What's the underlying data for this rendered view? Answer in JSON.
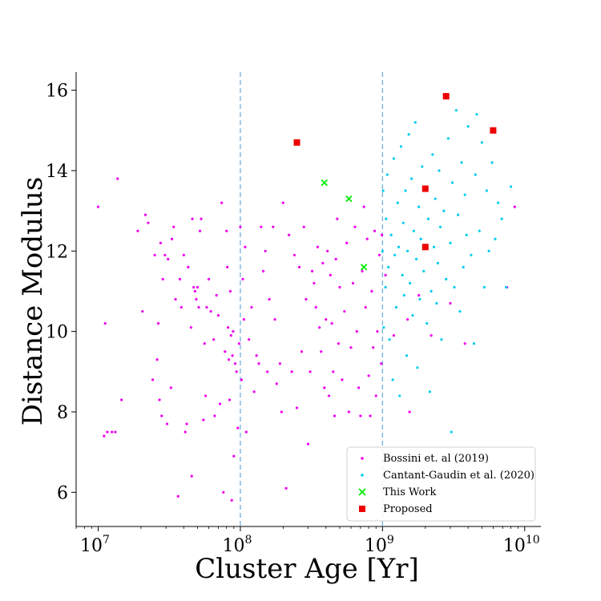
{
  "chart_data": {
    "type": "scatter",
    "xscale": "log",
    "xlim": [
      7000000,
      13000000000
    ],
    "ylim": [
      5.15,
      16.45
    ],
    "xlabel": "Cluster Age [Yr]",
    "ylabel": "Distance Modulus",
    "x_ticks": [
      {
        "value": 10000000,
        "base": "10",
        "exp": "7"
      },
      {
        "value": 100000000,
        "base": "10",
        "exp": "8"
      },
      {
        "value": 1000000000,
        "base": "10",
        "exp": "9"
      },
      {
        "value": 10000000000,
        "base": "10",
        "exp": "10"
      }
    ],
    "y_ticks": [
      6,
      8,
      10,
      12,
      14,
      16
    ],
    "vlines": [
      100000000,
      1000000000
    ],
    "grid": false,
    "legend_position": "lower-right",
    "colors": {
      "bossini": "#ee00ee",
      "cantat": "#00ccee",
      "this_work": "#00ee00",
      "proposed": "#ee0000",
      "vline": "#7fb5df"
    },
    "series": [
      {
        "name": "Bossini et. al (2019)",
        "marker": "dot",
        "points": [
          [
            10000000,
            13.1
          ],
          [
            11000000,
            7.4
          ],
          [
            11200000,
            10.2
          ],
          [
            11600000,
            7.5
          ],
          [
            12500000,
            7.5
          ],
          [
            13200000,
            7.5
          ],
          [
            13700000,
            13.8
          ],
          [
            14600000,
            8.3
          ],
          [
            19000000,
            12.5
          ],
          [
            20500000,
            10.5
          ],
          [
            21500000,
            12.9
          ],
          [
            22500000,
            12.7
          ],
          [
            24200000,
            8.8
          ],
          [
            25000000,
            11.9
          ],
          [
            26000000,
            9.3
          ],
          [
            26500000,
            10.2
          ],
          [
            27000000,
            8.3
          ],
          [
            27500000,
            12.2
          ],
          [
            28000000,
            7.9
          ],
          [
            28500000,
            11.3
          ],
          [
            29500000,
            11.9
          ],
          [
            30500000,
            7.7
          ],
          [
            31000000,
            11.8
          ],
          [
            32500000,
            8.6
          ],
          [
            33000000,
            12.3
          ],
          [
            34000000,
            12.6
          ],
          [
            35000000,
            10.8
          ],
          [
            36500000,
            5.9
          ],
          [
            37500000,
            11.3
          ],
          [
            38500000,
            10.6
          ],
          [
            40000000,
            11.9
          ],
          [
            41000000,
            7.5
          ],
          [
            42000000,
            7.7
          ],
          [
            43000000,
            11.6
          ],
          [
            45000000,
            10.1
          ],
          [
            45500000,
            6.4
          ],
          [
            46000000,
            12.8
          ],
          [
            47000000,
            11.1
          ],
          [
            48000000,
            11.0
          ],
          [
            49000000,
            10.8
          ],
          [
            50000000,
            11.1
          ],
          [
            51000000,
            10.6
          ],
          [
            52000000,
            12.5
          ],
          [
            53000000,
            12.8
          ],
          [
            55000000,
            7.8
          ],
          [
            56000000,
            9.7
          ],
          [
            57000000,
            8.4
          ],
          [
            58000000,
            10.6
          ],
          [
            60000000,
            11.3
          ],
          [
            62000000,
            10.5
          ],
          [
            65000000,
            9.8
          ],
          [
            66000000,
            7.9
          ],
          [
            68000000,
            10.9
          ],
          [
            70000000,
            10.4
          ],
          [
            72000000,
            8.2
          ],
          [
            74000000,
            13.2
          ],
          [
            76000000,
            6.0
          ],
          [
            78000000,
            9.5
          ],
          [
            80000000,
            12.5
          ],
          [
            81000000,
            11.6
          ],
          [
            82000000,
            10.1
          ],
          [
            83000000,
            9.3
          ],
          [
            84000000,
            8.3
          ],
          [
            85000000,
            11.0
          ],
          [
            86000000,
            9.9
          ],
          [
            87000000,
            5.8
          ],
          [
            88000000,
            9.4
          ],
          [
            89000000,
            10.0
          ],
          [
            90000000,
            6.9
          ],
          [
            92000000,
            9.2
          ],
          [
            94000000,
            9.0
          ],
          [
            96000000,
            7.6
          ],
          [
            98000000,
            9.7
          ],
          [
            100000000,
            12.6
          ],
          [
            102000000,
            8.8
          ],
          [
            104000000,
            11.3
          ],
          [
            106000000,
            10.3
          ],
          [
            108000000,
            12.1
          ],
          [
            110000000,
            7.5
          ],
          [
            115000000,
            9.8
          ],
          [
            120000000,
            10.6
          ],
          [
            125000000,
            8.5
          ],
          [
            130000000,
            9.4
          ],
          [
            135000000,
            9.2
          ],
          [
            140000000,
            12.6
          ],
          [
            145000000,
            11.5
          ],
          [
            150000000,
            12.0
          ],
          [
            155000000,
            9.0
          ],
          [
            160000000,
            10.8
          ],
          [
            170000000,
            12.6
          ],
          [
            175000000,
            10.3
          ],
          [
            180000000,
            8.7
          ],
          [
            190000000,
            9.2
          ],
          [
            195000000,
            8.0
          ],
          [
            200000000,
            13.2
          ],
          [
            210000000,
            6.1
          ],
          [
            220000000,
            12.4
          ],
          [
            230000000,
            9.0
          ],
          [
            240000000,
            11.9
          ],
          [
            250000000,
            8.1
          ],
          [
            260000000,
            11.6
          ],
          [
            270000000,
            9.5
          ],
          [
            280000000,
            12.6
          ],
          [
            290000000,
            10.8
          ],
          [
            300000000,
            7.2
          ],
          [
            310000000,
            9.0
          ],
          [
            320000000,
            11.5
          ],
          [
            330000000,
            11.2
          ],
          [
            340000000,
            10.6
          ],
          [
            350000000,
            12.1
          ],
          [
            360000000,
            10.1
          ],
          [
            370000000,
            9.5
          ],
          [
            380000000,
            11.7
          ],
          [
            390000000,
            8.6
          ],
          [
            400000000,
            10.3
          ],
          [
            410000000,
            12.0
          ],
          [
            420000000,
            8.4
          ],
          [
            430000000,
            11.4
          ],
          [
            440000000,
            10.2
          ],
          [
            450000000,
            9.0
          ],
          [
            460000000,
            7.9
          ],
          [
            470000000,
            11.8
          ],
          [
            480000000,
            12.8
          ],
          [
            490000000,
            9.7
          ],
          [
            500000000,
            11.1
          ],
          [
            520000000,
            8.8
          ],
          [
            540000000,
            10.5
          ],
          [
            560000000,
            12.2
          ],
          [
            580000000,
            8.0
          ],
          [
            600000000,
            9.6
          ],
          [
            620000000,
            11.2
          ],
          [
            640000000,
            12.6
          ],
          [
            660000000,
            10.0
          ],
          [
            680000000,
            8.6
          ],
          [
            700000000,
            7.9
          ],
          [
            720000000,
            11.5
          ],
          [
            740000000,
            13.1
          ],
          [
            760000000,
            10.6
          ],
          [
            780000000,
            12.3
          ],
          [
            800000000,
            8.9
          ],
          [
            820000000,
            7.9
          ],
          [
            840000000,
            11.0
          ],
          [
            860000000,
            9.6
          ],
          [
            880000000,
            12.5
          ],
          [
            900000000,
            8.4
          ],
          [
            920000000,
            10.0
          ],
          [
            950000000,
            11.9
          ],
          [
            980000000,
            9.2
          ],
          [
            990000000,
            12.4
          ],
          [
            1050000000,
            11.4
          ],
          [
            1200000000,
            9.9
          ],
          [
            1500000000,
            10.3
          ],
          [
            1550000000,
            8.0
          ],
          [
            1800000000,
            10.9
          ],
          [
            2200000000,
            9.9
          ],
          [
            3000000000,
            10.7
          ],
          [
            3800000000,
            9.7
          ],
          [
            7500000000,
            11.1
          ],
          [
            8500000000,
            13.1
          ]
        ]
      },
      {
        "name": "Cantant-Gaudin et al. (2020)",
        "marker": "dot",
        "points": [
          [
            1000000000,
            12.0
          ],
          [
            1010000000,
            13.5
          ],
          [
            1020000000,
            10.1
          ],
          [
            1050000000,
            11.1
          ],
          [
            1060000000,
            12.8
          ],
          [
            1080000000,
            13.9
          ],
          [
            1100000000,
            11.6
          ],
          [
            1120000000,
            9.8
          ],
          [
            1150000000,
            12.4
          ],
          [
            1180000000,
            8.8
          ],
          [
            1200000000,
            14.3
          ],
          [
            1220000000,
            11.9
          ],
          [
            1250000000,
            10.6
          ],
          [
            1280000000,
            13.2
          ],
          [
            1300000000,
            12.1
          ],
          [
            1320000000,
            8.4
          ],
          [
            1350000000,
            14.6
          ],
          [
            1380000000,
            11.4
          ],
          [
            1400000000,
            12.7
          ],
          [
            1420000000,
            10.9
          ],
          [
            1450000000,
            13.5
          ],
          [
            1480000000,
            9.4
          ],
          [
            1500000000,
            12.0
          ],
          [
            1530000000,
            14.9
          ],
          [
            1560000000,
            11.2
          ],
          [
            1600000000,
            13.8
          ],
          [
            1630000000,
            10.4
          ],
          [
            1660000000,
            12.5
          ],
          [
            1700000000,
            15.2
          ],
          [
            1730000000,
            11.8
          ],
          [
            1760000000,
            9.1
          ],
          [
            1800000000,
            13.1
          ],
          [
            1830000000,
            10.8
          ],
          [
            1860000000,
            12.3
          ],
          [
            1900000000,
            14.1
          ],
          [
            1950000000,
            11.5
          ],
          [
            2000000000,
            13.6
          ],
          [
            2050000000,
            10.2
          ],
          [
            2100000000,
            12.8
          ],
          [
            2150000000,
            8.5
          ],
          [
            2200000000,
            11.0
          ],
          [
            2250000000,
            14.4
          ],
          [
            2300000000,
            12.1
          ],
          [
            2350000000,
            13.3
          ],
          [
            2400000000,
            10.7
          ],
          [
            2450000000,
            11.7
          ],
          [
            2500000000,
            14.0
          ],
          [
            2550000000,
            12.6
          ],
          [
            2600000000,
            9.8
          ],
          [
            2700000000,
            13.0
          ],
          [
            2800000000,
            11.3
          ],
          [
            2900000000,
            14.8
          ],
          [
            3000000000,
            12.2
          ],
          [
            3050000000,
            7.5
          ],
          [
            3100000000,
            13.7
          ],
          [
            3200000000,
            11.1
          ],
          [
            3300000000,
            15.5
          ],
          [
            3400000000,
            12.9
          ],
          [
            3500000000,
            10.5
          ],
          [
            3600000000,
            14.2
          ],
          [
            3700000000,
            11.6
          ],
          [
            3800000000,
            13.4
          ],
          [
            3900000000,
            12.4
          ],
          [
            4000000000,
            15.1
          ],
          [
            4200000000,
            11.9
          ],
          [
            4400000000,
            9.7
          ],
          [
            4500000000,
            13.9
          ],
          [
            4600000000,
            15.4
          ],
          [
            4800000000,
            12.5
          ],
          [
            5000000000,
            14.7
          ],
          [
            5200000000,
            11.1
          ],
          [
            5400000000,
            13.5
          ],
          [
            5600000000,
            12.0
          ],
          [
            5900000000,
            14.2
          ],
          [
            6200000000,
            12.3
          ],
          [
            6500000000,
            13.2
          ],
          [
            6900000000,
            12.8
          ],
          [
            7400000000,
            11.1
          ],
          [
            8000000000,
            13.6
          ]
        ]
      },
      {
        "name": "This Work",
        "marker": "x",
        "points": [
          [
            390000000,
            13.7
          ],
          [
            580000000,
            13.3
          ],
          [
            740000000,
            11.6
          ]
        ]
      },
      {
        "name": "Proposed",
        "marker": "square",
        "points": [
          [
            250000000,
            14.7
          ],
          [
            2000000000,
            13.55
          ],
          [
            2000000000,
            12.1
          ],
          [
            2800000000,
            15.85
          ],
          [
            6000000000,
            15.0
          ]
        ]
      }
    ]
  }
}
